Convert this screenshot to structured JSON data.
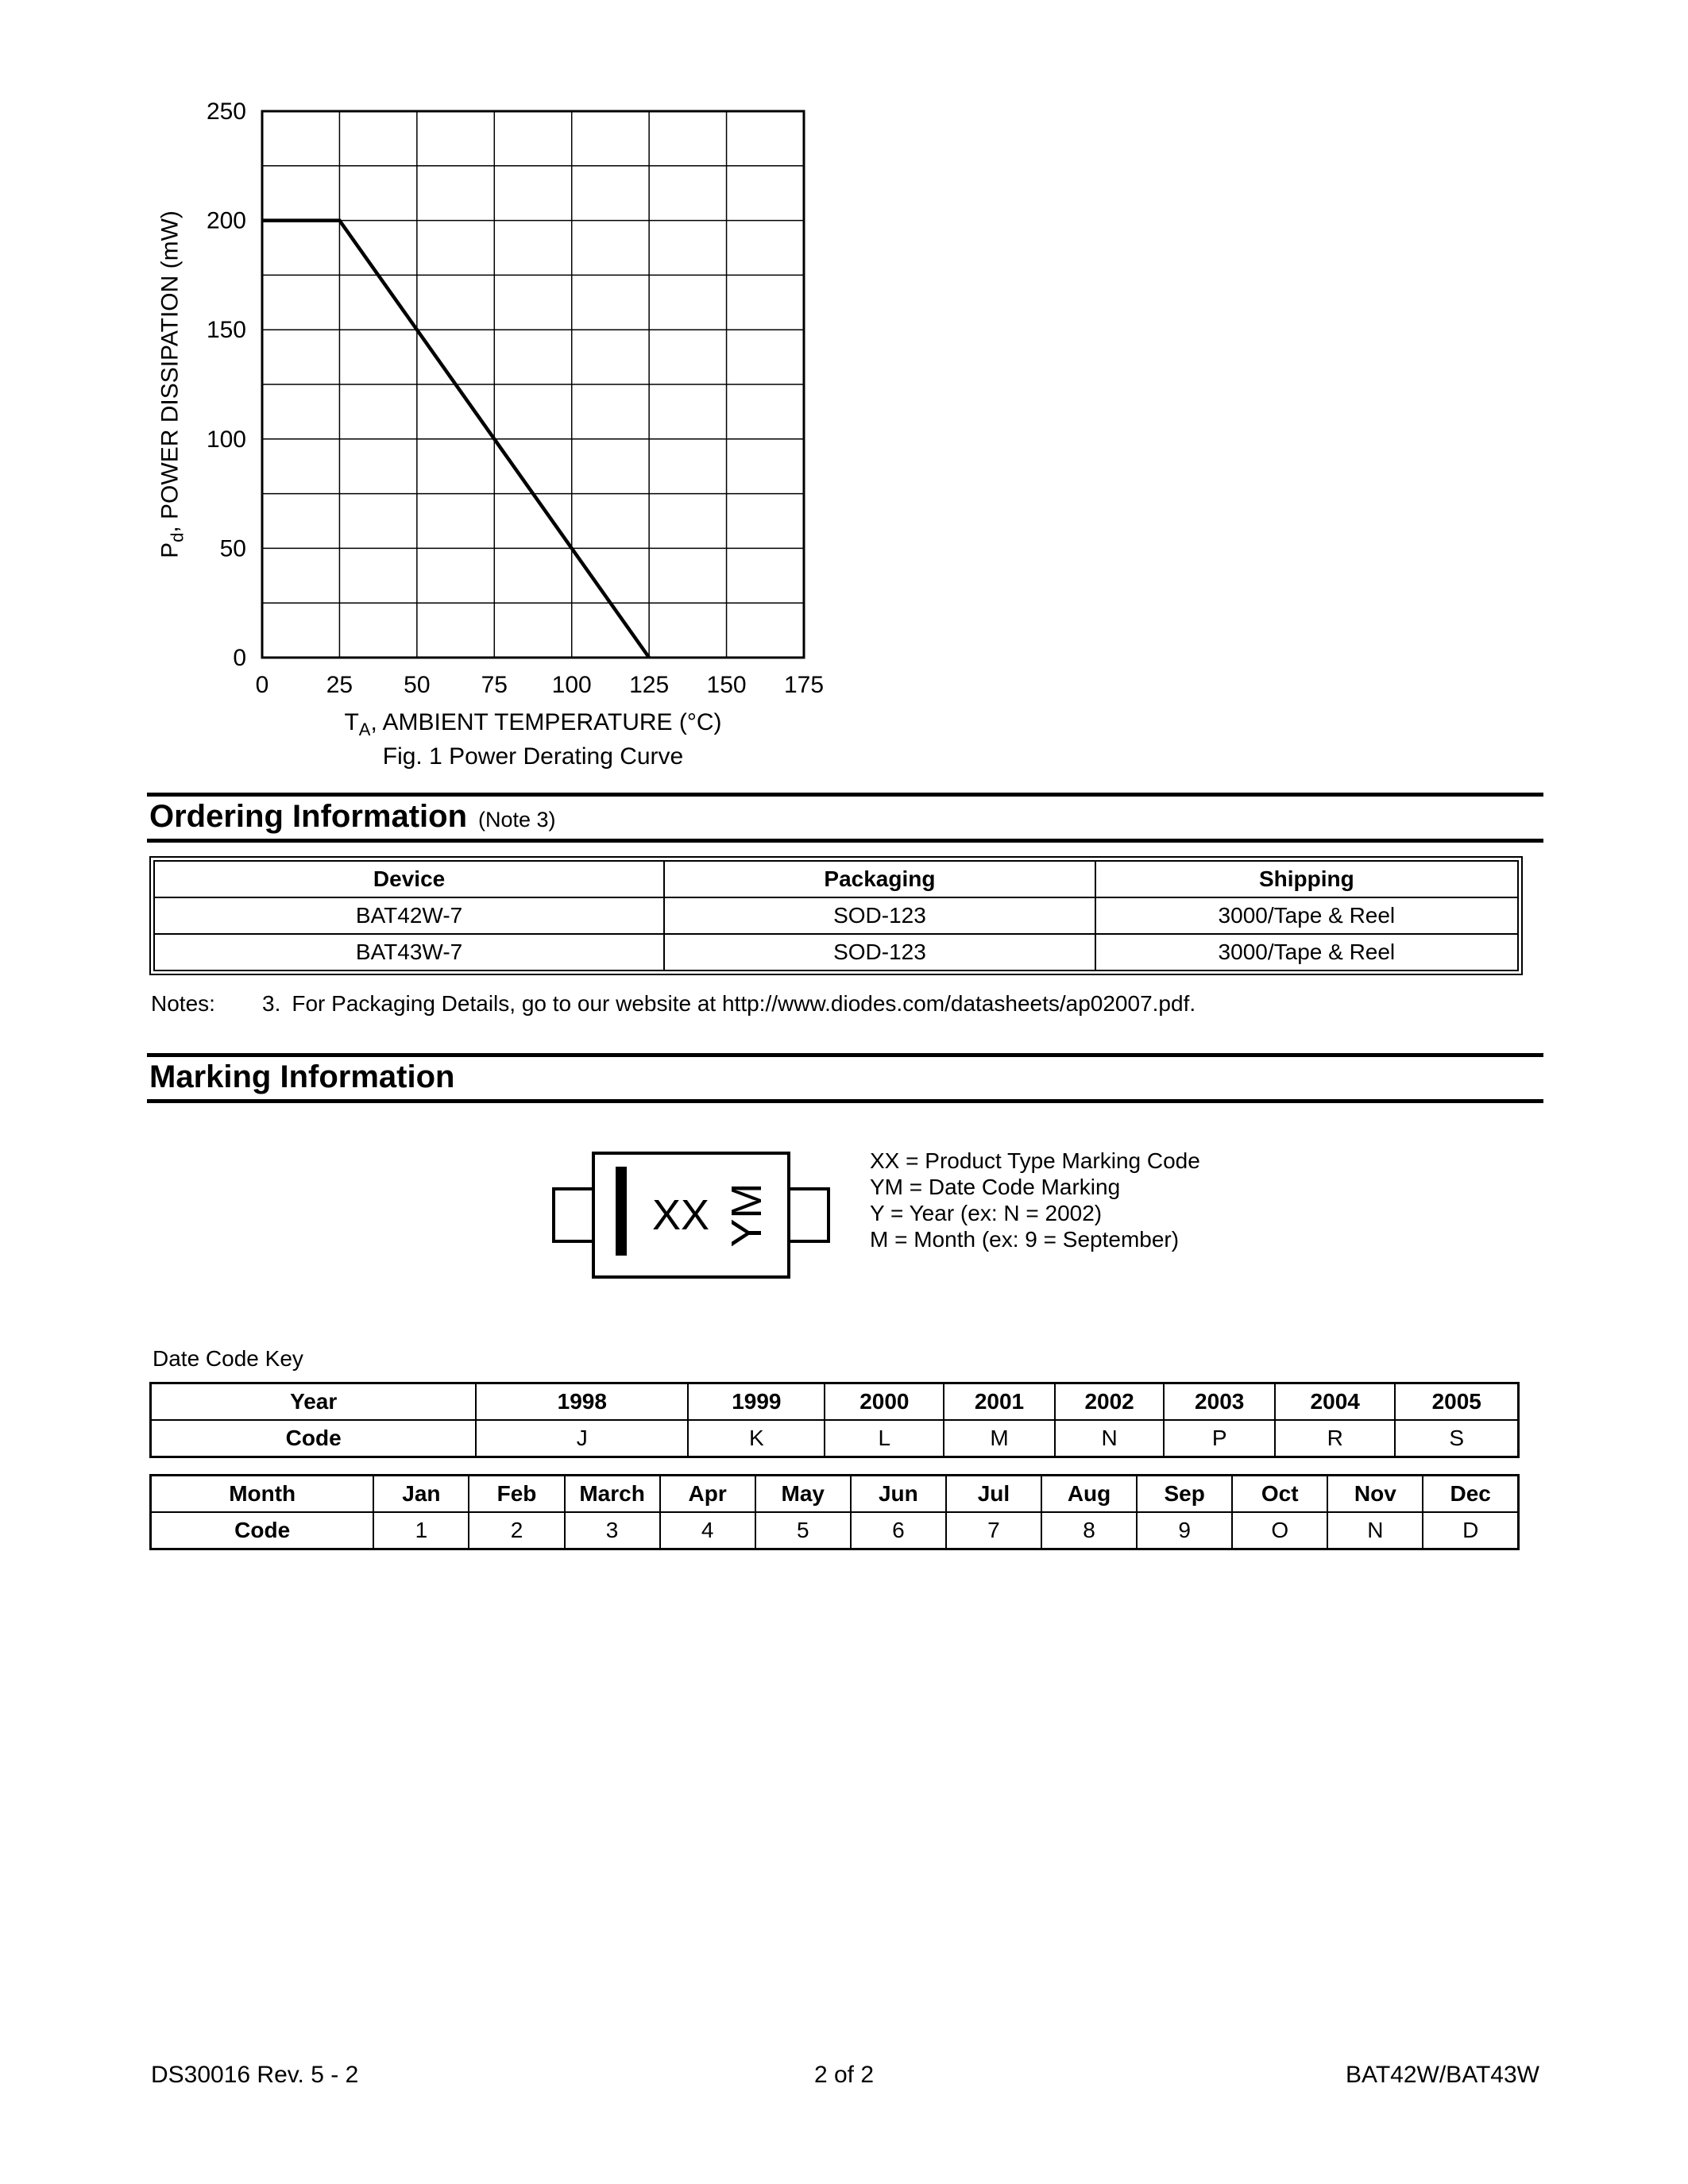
{
  "chart_data": {
    "type": "line",
    "title": "Fig. 1  Power Derating Curve",
    "xlabel_pre": "T",
    "xlabel_sub": "A",
    "xlabel_post": ", AMBIENT TEMPERATURE (°C)",
    "ylabel_pre": "P",
    "ylabel_sub": "d",
    "ylabel_post": ", POWER DISSIPATION (mW)",
    "xlim": [
      0,
      175
    ],
    "ylim": [
      0,
      250
    ],
    "x_grid_step": 25,
    "y_grid_step": 25,
    "x_major_ticks": [
      0,
      25,
      50,
      75,
      100,
      125,
      150,
      175
    ],
    "y_major_ticks": [
      0,
      50,
      100,
      150,
      200,
      250
    ],
    "grid": true,
    "legend_position": "none",
    "series": [
      {
        "name": "Power Derating",
        "points": [
          [
            0,
            200
          ],
          [
            25,
            200
          ],
          [
            125,
            0
          ]
        ]
      }
    ]
  },
  "ordering": {
    "heading": "Ordering Information",
    "note_ref": "(Note 3)",
    "table": {
      "headers": [
        "Device",
        "Packaging",
        "Shipping"
      ],
      "rows": [
        [
          "BAT42W-7",
          "SOD-123",
          "3000/Tape & Reel"
        ],
        [
          "BAT43W-7",
          "SOD-123",
          "3000/Tape & Reel"
        ]
      ]
    },
    "notes_label": "Notes:",
    "note_number": "3.",
    "note_body": "For Packaging Details, go to our website at http://www.diodes.com/datasheets/ap02007.pdf."
  },
  "marking": {
    "heading": "Marking Information",
    "package": {
      "xx": "XX",
      "ym": "YM"
    },
    "legend": [
      "XX = Product Type Marking Code",
      "YM = Date Code Marking",
      "Y = Year (ex: N = 2002)",
      "M = Month (ex: 9 = September)"
    ]
  },
  "date_code_key": {
    "title": "Date Code Key",
    "year_table": {
      "row1_label": "Year",
      "row2_label": "Code",
      "years": [
        "1998",
        "1999",
        "2000",
        "2001",
        "2002",
        "2003",
        "2004",
        "2005"
      ],
      "codes": [
        "J",
        "K",
        "L",
        "M",
        "N",
        "P",
        "R",
        "S"
      ]
    },
    "month_table": {
      "row1_label": "Month",
      "row2_label": "Code",
      "months": [
        "Jan",
        "Feb",
        "March",
        "Apr",
        "May",
        "Jun",
        "Jul",
        "Aug",
        "Sep",
        "Oct",
        "Nov",
        "Dec"
      ],
      "codes": [
        "1",
        "2",
        "3",
        "4",
        "5",
        "6",
        "7",
        "8",
        "9",
        "O",
        "N",
        "D"
      ]
    }
  },
  "footer": {
    "left": "DS30016 Rev. 5 - 2",
    "center": "2 of 2",
    "right": "BAT42W/BAT43W"
  }
}
